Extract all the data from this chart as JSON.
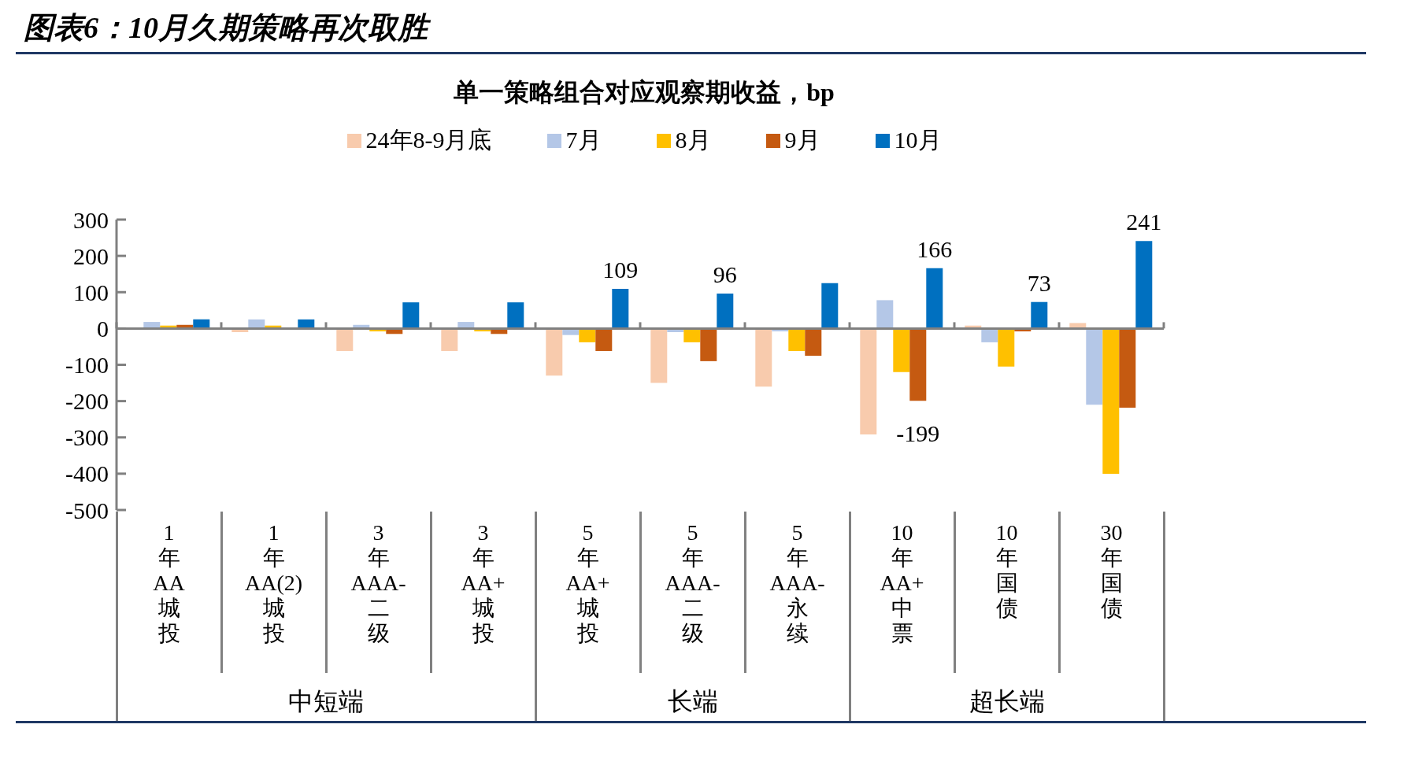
{
  "chart_data": {
    "type": "bar",
    "title": "图表6：10月久期策略再次取胜",
    "subtitle": "单一策略组合对应观察期收益，bp",
    "categories": [
      "1年AA城投",
      "1年AA(2)城投",
      "3年AAA-二级",
      "3年AA+城投",
      "5年AA+城投",
      "5年AAA-二级",
      "5年AAA-永续",
      "10年AA+中票",
      "10年国债",
      "30年国债"
    ],
    "annotations": [
      "中短端",
      "长端",
      "超长端"
    ],
    "series": [
      {
        "name": "24年8-9月底",
        "color": "#f8cbad",
        "values": [
          null,
          -10,
          -62,
          -62,
          -130,
          -150,
          -160,
          -292,
          8,
          15
        ]
      },
      {
        "name": "7月",
        "color": "#b4c7e7",
        "values": [
          18,
          25,
          10,
          18,
          -18,
          -10,
          -8,
          78,
          -38,
          -210
        ]
      },
      {
        "name": "8月",
        "color": "#ffc000",
        "values": [
          8,
          8,
          -8,
          -8,
          -38,
          -38,
          -62,
          -120,
          -105,
          -400
        ]
      },
      {
        "name": "9月",
        "color": "#c55a11",
        "values": [
          10,
          -3,
          -15,
          -15,
          -62,
          -90,
          -75,
          -199,
          -8,
          -218
        ],
        "value_labels": [
          null,
          null,
          null,
          null,
          null,
          null,
          null,
          "-199",
          null,
          null
        ]
      },
      {
        "name": "10月",
        "color": "#0070c0",
        "values": [
          25,
          25,
          72,
          72,
          109,
          96,
          125,
          166,
          73,
          241
        ],
        "value_labels": [
          null,
          null,
          null,
          null,
          "109",
          "96",
          null,
          "166",
          "73",
          "241"
        ]
      }
    ],
    "ylim": [
      -500,
      300
    ],
    "yticks": [
      -500,
      -400,
      -300,
      -200,
      -100,
      0,
      100,
      200,
      300
    ],
    "legend": "top"
  }
}
